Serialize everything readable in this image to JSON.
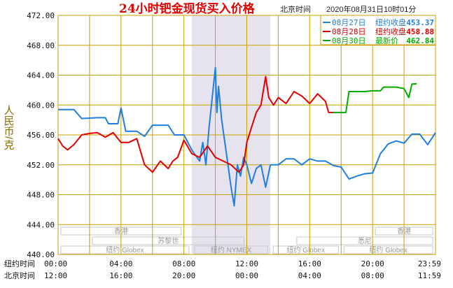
{
  "chart_data": {
    "type": "line",
    "title": "24小时钯金现货买入价格",
    "timezone_label": "北京时间",
    "timestamp": "2020年08月31日10时01分",
    "ylabel": "人民币/克",
    "ylim": [
      440,
      472
    ],
    "yticks": [
      "472.00",
      "468.00",
      "464.00",
      "460.00",
      "456.00",
      "452.00",
      "448.00",
      "444.00",
      "440.00"
    ],
    "xlim": [
      0,
      24
    ],
    "x_rows": [
      {
        "label": "纽约时间",
        "ticks": [
          "00:00",
          "04:00",
          "08:00",
          "12:00",
          "16:00",
          "20:00",
          "23:59"
        ]
      },
      {
        "label": "北京时间",
        "ticks": [
          "12:00",
          "16:00",
          "20:00",
          "00:00",
          "04:00",
          "08:00",
          "11:59"
        ]
      }
    ],
    "grid": true,
    "legend_position": "top-right",
    "highlight_band": {
      "x": [
        8.5,
        13.5
      ],
      "color": "#e6e3ee"
    },
    "sessions": [
      {
        "label": "香港",
        "x": [
          0,
          8
        ],
        "row": 1
      },
      {
        "label": "香港",
        "x": [
          20,
          24
        ],
        "row": 1
      },
      {
        "label": "苏黎世",
        "x": [
          2,
          12
        ],
        "row": 2
      },
      {
        "label": "悉尼",
        "x": [
          15,
          24
        ],
        "row": 2
      },
      {
        "label": "纽约 Globex",
        "x": [
          0,
          8.5
        ],
        "row": 3
      },
      {
        "label": "纽约 NYMEX",
        "x": [
          8.5,
          13.5
        ],
        "row": 3
      },
      {
        "label": "纽约 Globex",
        "x": [
          13.5,
          18
        ],
        "row": 3
      },
      {
        "label": "纽约 Globex",
        "x": [
          18,
          24
        ],
        "row": 3
      }
    ],
    "series": [
      {
        "name": "08月27日",
        "legend_label": "纽约收盘",
        "legend_value": "453.37",
        "color": "#1f7fe0",
        "points": [
          [
            0,
            459.4
          ],
          [
            1,
            459.4
          ],
          [
            1.5,
            458.2
          ],
          [
            2.5,
            458.3
          ],
          [
            3,
            458.3
          ],
          [
            3.2,
            457.5
          ],
          [
            3.8,
            457.5
          ],
          [
            4,
            459.6
          ],
          [
            4.3,
            456.5
          ],
          [
            5,
            456.5
          ],
          [
            5.5,
            455.8
          ],
          [
            6,
            457.3
          ],
          [
            7,
            457.3
          ],
          [
            7.4,
            456.0
          ],
          [
            8,
            456.0
          ],
          [
            8.5,
            454.0
          ],
          [
            9,
            452.5
          ],
          [
            9.2,
            455.0
          ],
          [
            9.4,
            452.0
          ],
          [
            9.6,
            457.0
          ],
          [
            9.8,
            461.0
          ],
          [
            10,
            465.0
          ],
          [
            10.1,
            459.0
          ],
          [
            10.2,
            462.5
          ],
          [
            10.4,
            458.0
          ],
          [
            10.6,
            455.0
          ],
          [
            10.8,
            452.0
          ],
          [
            11,
            449.0
          ],
          [
            11.2,
            446.5
          ],
          [
            11.4,
            452.0
          ],
          [
            11.6,
            450.5
          ],
          [
            11.8,
            453.0
          ],
          [
            12,
            452.0
          ],
          [
            12.3,
            449.5
          ],
          [
            12.6,
            451.5
          ],
          [
            12.9,
            452.0
          ],
          [
            13.2,
            449.0
          ],
          [
            13.5,
            452.0
          ],
          [
            14,
            452.0
          ],
          [
            14.5,
            452.8
          ],
          [
            15,
            452.8
          ],
          [
            15.5,
            452.0
          ],
          [
            16,
            452.8
          ],
          [
            16.5,
            452.5
          ],
          [
            17,
            452.5
          ],
          [
            17.5,
            451.9
          ],
          [
            18,
            451.7
          ],
          [
            18.5,
            450.1
          ],
          [
            19,
            450.5
          ],
          [
            19.5,
            450.8
          ],
          [
            20,
            450.9
          ],
          [
            20.5,
            453.5
          ],
          [
            21,
            454.8
          ],
          [
            21.5,
            455.2
          ],
          [
            22,
            454.9
          ],
          [
            22.5,
            456.1
          ],
          [
            23,
            456.1
          ],
          [
            23.5,
            454.7
          ],
          [
            24,
            456.3
          ]
        ]
      },
      {
        "name": "08月28日",
        "legend_label": "纽约收盘",
        "legend_value": "458.88",
        "color": "#e00000",
        "points": [
          [
            0,
            455.5
          ],
          [
            0.3,
            454.5
          ],
          [
            0.6,
            454.0
          ],
          [
            1,
            454.7
          ],
          [
            1.5,
            456.0
          ],
          [
            2,
            456.2
          ],
          [
            2.5,
            456.3
          ],
          [
            3,
            455.7
          ],
          [
            3.5,
            456.3
          ],
          [
            4,
            455.0
          ],
          [
            4.5,
            455.0
          ],
          [
            5,
            455.5
          ],
          [
            5.5,
            452.0
          ],
          [
            6,
            451.0
          ],
          [
            6.5,
            452.5
          ],
          [
            7,
            451.5
          ],
          [
            7.3,
            452.5
          ],
          [
            7.6,
            453.0
          ],
          [
            8,
            455.3
          ],
          [
            8.5,
            453.5
          ],
          [
            9,
            453.0
          ],
          [
            9.5,
            454.5
          ],
          [
            10,
            453.0
          ],
          [
            10.5,
            452.5
          ],
          [
            11,
            452.0
          ],
          [
            11.5,
            451.0
          ],
          [
            11.8,
            452.0
          ],
          [
            12,
            455.0
          ],
          [
            12.3,
            457.0
          ],
          [
            12.6,
            459.0
          ],
          [
            12.9,
            460.0
          ],
          [
            13.2,
            463.8
          ],
          [
            13.4,
            461.0
          ],
          [
            13.7,
            460.0
          ],
          [
            14,
            461.0
          ],
          [
            14.5,
            460.2
          ],
          [
            15,
            461.8
          ],
          [
            15.5,
            461.2
          ],
          [
            16,
            460.2
          ],
          [
            16.5,
            461.5
          ],
          [
            17,
            460.5
          ],
          [
            17.2,
            459.0
          ],
          [
            17.5,
            459.0
          ]
        ]
      },
      {
        "name": "08月30日",
        "legend_label": "最新价",
        "legend_value": "462.84",
        "color": "#00aa00",
        "points": [
          [
            17.5,
            459.0
          ],
          [
            18.3,
            459.0
          ],
          [
            18.5,
            461.8
          ],
          [
            19.5,
            461.8
          ],
          [
            20,
            461.9
          ],
          [
            20.5,
            461.9
          ],
          [
            20.7,
            462.4
          ],
          [
            21.5,
            462.4
          ],
          [
            22,
            462.2
          ],
          [
            22.3,
            461.0
          ],
          [
            22.5,
            462.8
          ],
          [
            22.8,
            462.84
          ]
        ]
      }
    ]
  }
}
